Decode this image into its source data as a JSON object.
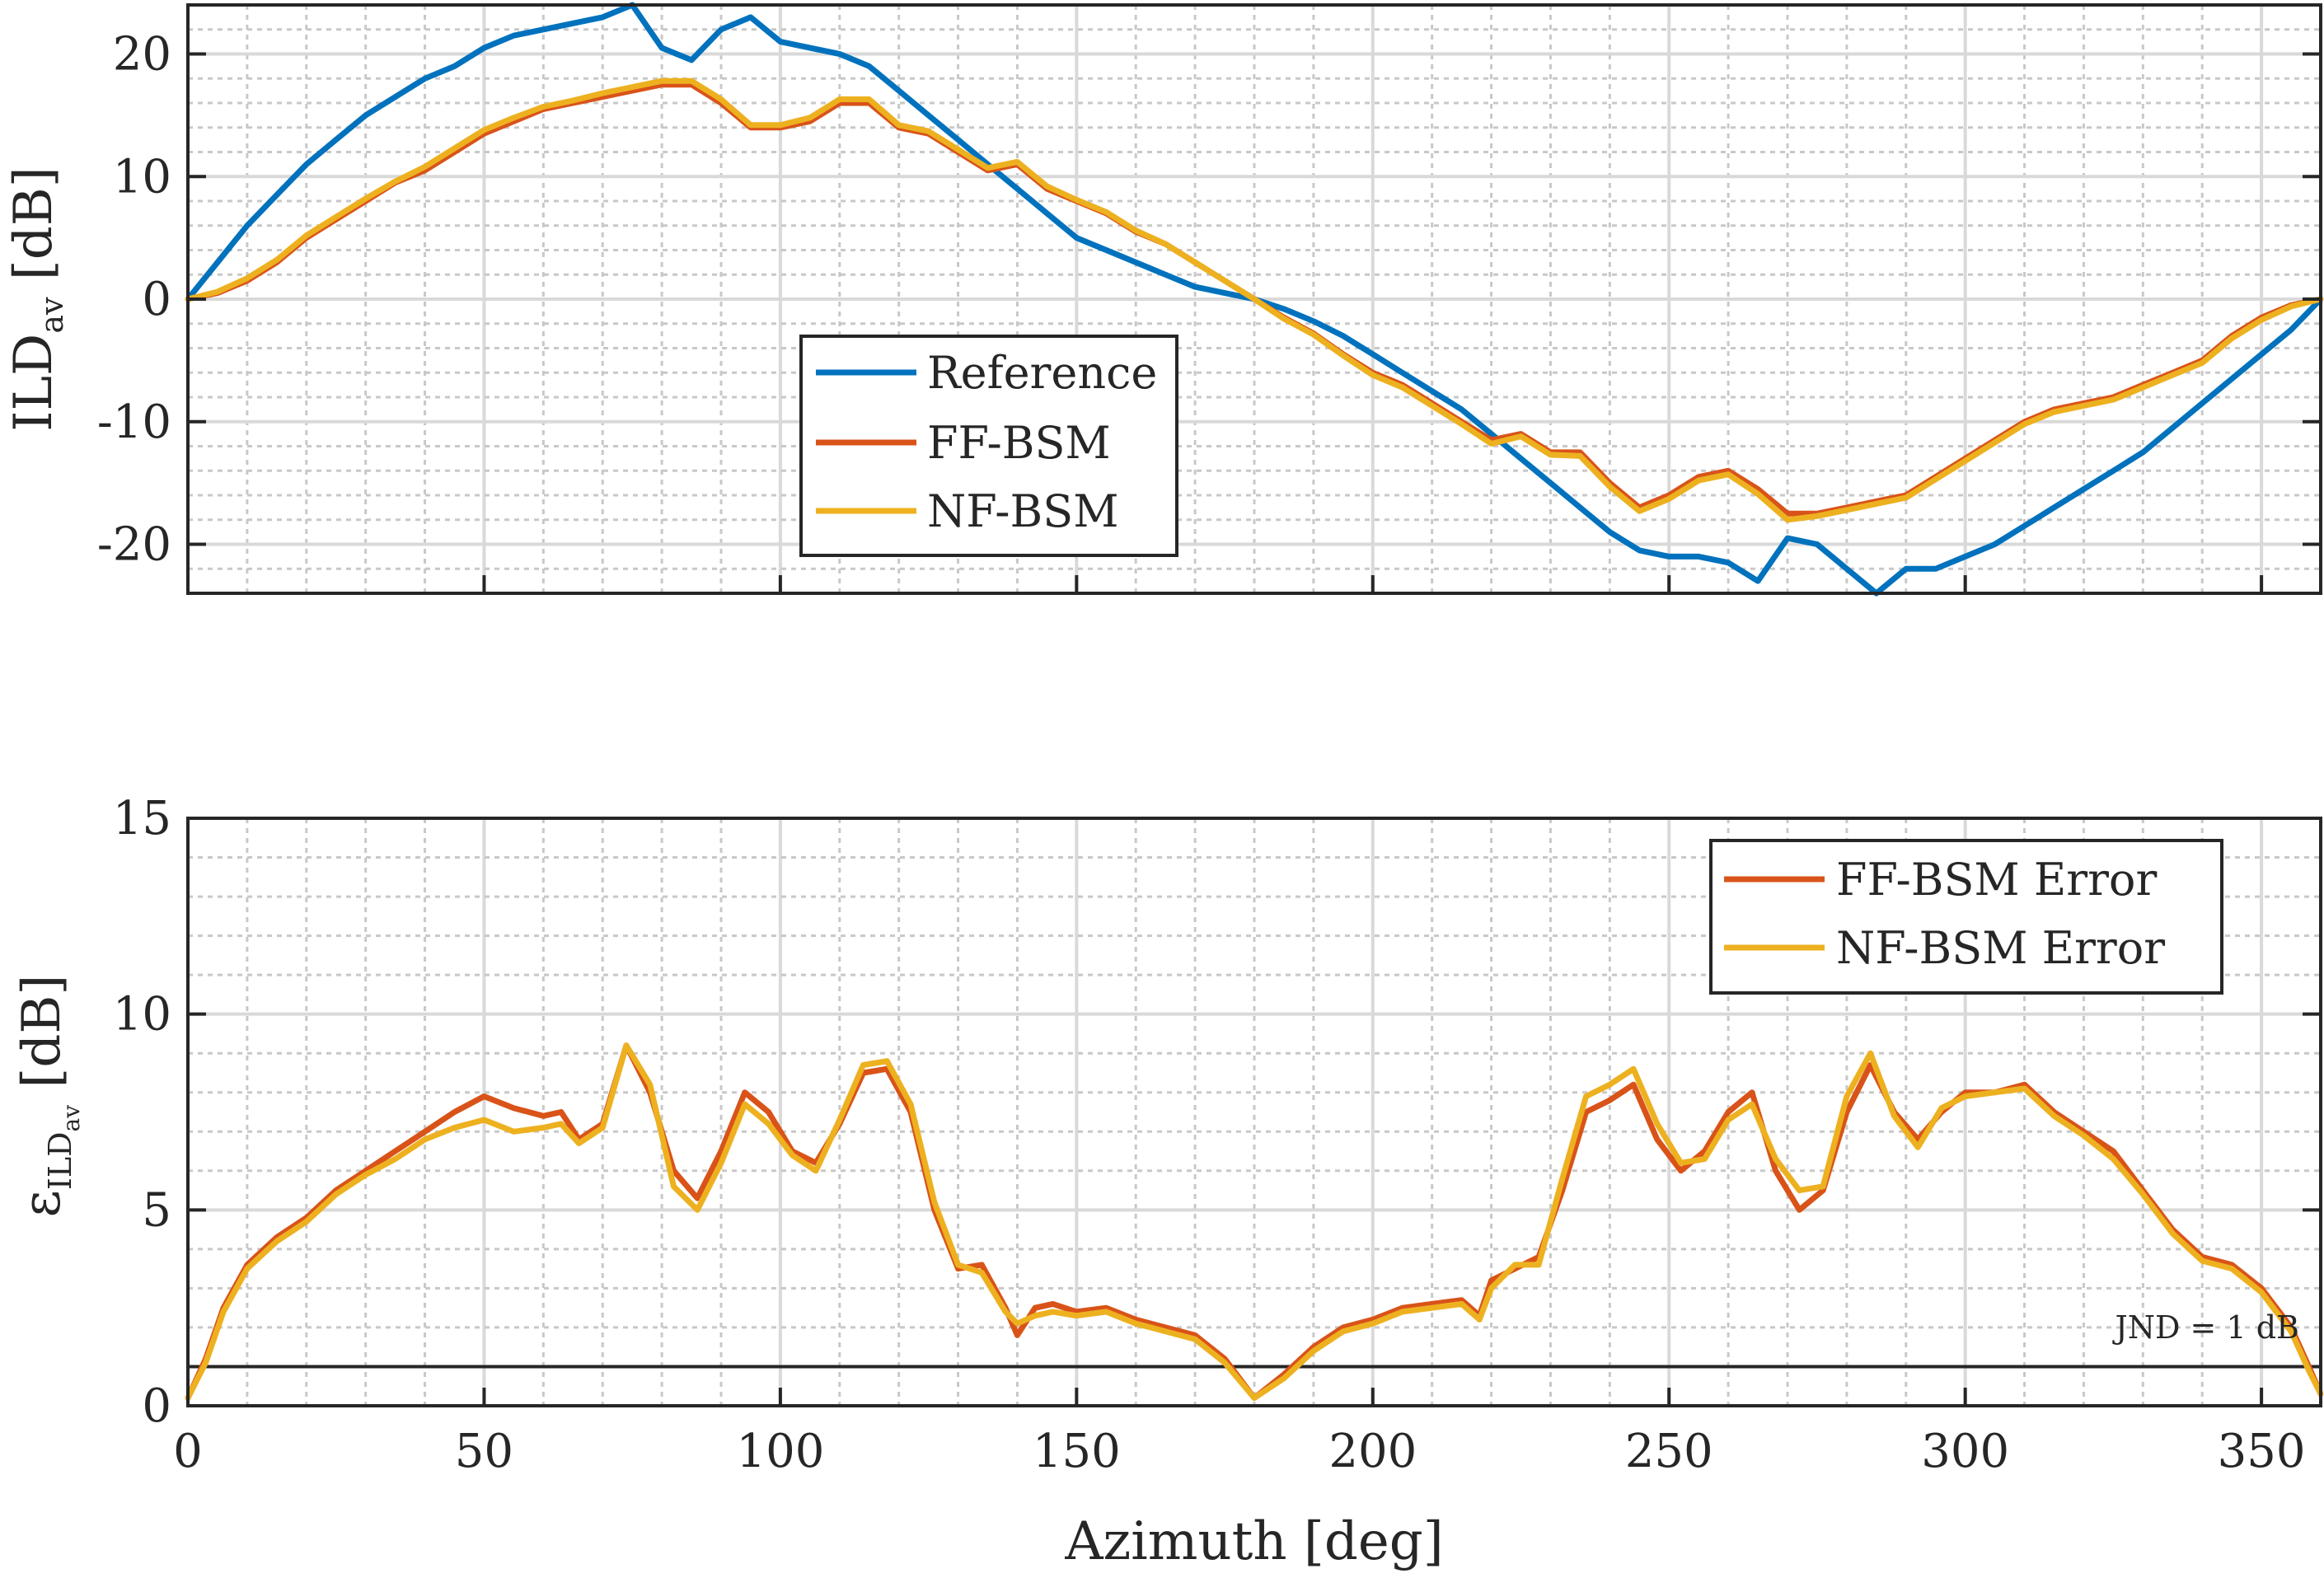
{
  "chart_data": [
    {
      "type": "line",
      "panel": "top",
      "ylabel_main": "ILD",
      "ylabel_sub": "av",
      "ylabel_unit": "[dB]",
      "xlim": [
        0,
        360
      ],
      "ylim": [
        -24,
        24
      ],
      "yticks": [
        -20,
        -10,
        0,
        10,
        20
      ],
      "ytick_labels": [
        "-20",
        "-10",
        "0",
        "10",
        "20"
      ],
      "grid": true,
      "minor_grid": true,
      "legend_position": "center",
      "series": [
        {
          "name": "Reference",
          "color": "#0072BD",
          "x": [
            0,
            5,
            10,
            15,
            20,
            25,
            30,
            35,
            40,
            45,
            50,
            55,
            60,
            65,
            70,
            75,
            80,
            85,
            90,
            95,
            100,
            105,
            110,
            115,
            120,
            125,
            130,
            135,
            140,
            145,
            150,
            155,
            160,
            165,
            170,
            175,
            180,
            185,
            190,
            195,
            200,
            205,
            210,
            215,
            220,
            225,
            230,
            235,
            240,
            245,
            250,
            255,
            260,
            265,
            270,
            275,
            280,
            285,
            290,
            295,
            300,
            305,
            310,
            315,
            320,
            325,
            330,
            335,
            340,
            345,
            350,
            355,
            360
          ],
          "y": [
            0,
            3,
            6,
            8.5,
            11,
            13,
            15,
            16.5,
            18,
            19,
            20.5,
            21.5,
            22,
            22.5,
            23,
            24,
            20.5,
            19.5,
            22,
            23,
            21,
            20.5,
            20,
            19,
            17,
            15,
            13,
            11,
            9,
            7,
            5,
            4,
            3,
            2,
            1,
            0.5,
            0,
            -0.8,
            -1.8,
            -3,
            -4.5,
            -6,
            -7.5,
            -9,
            -11,
            -13,
            -15,
            -17,
            -19,
            -20.5,
            -21,
            -21,
            -21.5,
            -23,
            -19.5,
            -20,
            -22,
            -24,
            -22,
            -22,
            -21,
            -20,
            -18.5,
            -17,
            -15.5,
            -14,
            -12.5,
            -10.5,
            -8.5,
            -6.5,
            -4.5,
            -2.5,
            0
          ]
        },
        {
          "name": "FF-BSM",
          "color": "#D95319",
          "x": [
            0,
            5,
            10,
            15,
            20,
            25,
            30,
            35,
            40,
            45,
            50,
            55,
            60,
            65,
            70,
            75,
            80,
            85,
            90,
            95,
            100,
            105,
            110,
            115,
            120,
            125,
            130,
            135,
            140,
            145,
            150,
            155,
            160,
            165,
            170,
            175,
            180,
            185,
            190,
            195,
            200,
            205,
            210,
            215,
            220,
            225,
            230,
            235,
            240,
            245,
            250,
            255,
            260,
            265,
            270,
            275,
            280,
            285,
            290,
            295,
            300,
            305,
            310,
            315,
            320,
            325,
            330,
            335,
            340,
            345,
            350,
            355,
            360
          ],
          "y": [
            0,
            0.5,
            1.5,
            3,
            5,
            6.5,
            8,
            9.5,
            10.5,
            12,
            13.5,
            14.5,
            15.5,
            16,
            16.5,
            17,
            17.5,
            17.5,
            16,
            14,
            14,
            14.5,
            16,
            16,
            14,
            13.5,
            12,
            10.5,
            11,
            9,
            8,
            7,
            5.5,
            4.5,
            3,
            1.5,
            0,
            -1.5,
            -2.8,
            -4.5,
            -6,
            -7,
            -8.5,
            -10,
            -11.5,
            -11,
            -12.5,
            -12.5,
            -15,
            -17,
            -16,
            -14.5,
            -14,
            -15.5,
            -17.5,
            -17.5,
            -17,
            -16.5,
            -16,
            -14.5,
            -13,
            -11.5,
            -10,
            -9,
            -8.5,
            -8,
            -7,
            -6,
            -5,
            -3,
            -1.5,
            -0.5,
            0
          ]
        },
        {
          "name": "NF-BSM",
          "color": "#EDB120",
          "x": [
            0,
            5,
            10,
            15,
            20,
            25,
            30,
            35,
            40,
            45,
            50,
            55,
            60,
            65,
            70,
            75,
            80,
            85,
            90,
            95,
            100,
            105,
            110,
            115,
            120,
            125,
            130,
            135,
            140,
            145,
            150,
            155,
            160,
            165,
            170,
            175,
            180,
            185,
            190,
            195,
            200,
            205,
            210,
            215,
            220,
            225,
            230,
            235,
            240,
            245,
            250,
            255,
            260,
            265,
            270,
            275,
            280,
            285,
            290,
            295,
            300,
            305,
            310,
            315,
            320,
            325,
            330,
            335,
            340,
            345,
            350,
            355,
            360
          ],
          "y": [
            0,
            0.6,
            1.7,
            3.2,
            5.2,
            6.7,
            8.2,
            9.6,
            10.8,
            12.3,
            13.8,
            14.8,
            15.7,
            16.2,
            16.8,
            17.3,
            17.8,
            17.8,
            16.3,
            14.2,
            14.2,
            14.8,
            16.3,
            16.3,
            14.2,
            13.7,
            12.2,
            10.7,
            11.2,
            9.2,
            8.1,
            7.1,
            5.6,
            4.5,
            3,
            1.5,
            0,
            -1.6,
            -2.9,
            -4.6,
            -6.2,
            -7.2,
            -8.7,
            -10.2,
            -11.8,
            -11.2,
            -12.7,
            -12.8,
            -15.3,
            -17.3,
            -16.3,
            -14.8,
            -14.3,
            -15.9,
            -18,
            -17.7,
            -17.2,
            -16.7,
            -16.2,
            -14.7,
            -13.2,
            -11.7,
            -10.2,
            -9.2,
            -8.7,
            -8.2,
            -7.2,
            -6.2,
            -5.2,
            -3.2,
            -1.7,
            -0.6,
            0
          ]
        }
      ]
    },
    {
      "type": "line",
      "panel": "bottom",
      "ylabel_main": "ε",
      "ylabel_sub": "ILD",
      "ylabel_subsub": "av",
      "ylabel_unit": "[dB]",
      "xlabel": "Azimuth [deg]",
      "xlim": [
        0,
        360
      ],
      "ylim": [
        0,
        15
      ],
      "yticks": [
        0,
        5,
        10,
        15
      ],
      "ytick_labels": [
        "0",
        "5",
        "10",
        "15"
      ],
      "xticks": [
        0,
        50,
        100,
        150,
        200,
        250,
        300,
        350
      ],
      "xtick_labels": [
        "0",
        "50",
        "100",
        "150",
        "200",
        "250",
        "300",
        "350"
      ],
      "grid": true,
      "minor_grid": true,
      "legend_position": "top-right",
      "jnd_value": 1,
      "annotation": "JND = 1 dB",
      "series": [
        {
          "name": "FF-BSM Error",
          "color": "#D95319",
          "x": [
            0,
            3,
            6,
            10,
            15,
            20,
            25,
            30,
            35,
            40,
            45,
            50,
            55,
            60,
            63,
            66,
            70,
            74,
            78,
            82,
            86,
            90,
            94,
            98,
            102,
            106,
            110,
            114,
            118,
            122,
            126,
            130,
            134,
            138,
            140,
            143,
            146,
            150,
            155,
            160,
            165,
            170,
            175,
            180,
            185,
            190,
            195,
            200,
            205,
            210,
            215,
            218,
            220,
            224,
            228,
            232,
            236,
            240,
            244,
            248,
            252,
            256,
            260,
            264,
            268,
            272,
            276,
            280,
            284,
            288,
            292,
            296,
            300,
            305,
            310,
            315,
            320,
            325,
            330,
            335,
            340,
            345,
            350,
            355,
            358,
            360
          ],
          "y": [
            0.2,
            1.2,
            2.5,
            3.6,
            4.3,
            4.8,
            5.5,
            6,
            6.5,
            7,
            7.5,
            7.9,
            7.6,
            7.4,
            7.5,
            6.8,
            7.2,
            9.2,
            8,
            6,
            5.3,
            6.5,
            8,
            7.5,
            6.5,
            6.2,
            7.2,
            8.5,
            8.6,
            7.5,
            5,
            3.5,
            3.6,
            2.5,
            1.8,
            2.5,
            2.6,
            2.4,
            2.5,
            2.2,
            2,
            1.8,
            1.2,
            0.2,
            0.8,
            1.5,
            2,
            2.2,
            2.5,
            2.6,
            2.7,
            2.3,
            3.2,
            3.5,
            3.8,
            5.5,
            7.5,
            7.8,
            8.2,
            6.8,
            6,
            6.5,
            7.5,
            8,
            6,
            5,
            5.5,
            7.5,
            8.7,
            7.5,
            6.8,
            7.5,
            8,
            8,
            8.2,
            7.5,
            7,
            6.5,
            5.5,
            4.5,
            3.8,
            3.6,
            3,
            2,
            1,
            0.3
          ]
        },
        {
          "name": "NF-BSM Error",
          "color": "#EDB120",
          "x": [
            0,
            3,
            6,
            10,
            15,
            20,
            25,
            30,
            35,
            40,
            45,
            50,
            55,
            60,
            63,
            66,
            70,
            74,
            78,
            82,
            86,
            90,
            94,
            98,
            102,
            106,
            110,
            114,
            118,
            122,
            126,
            130,
            134,
            138,
            140,
            143,
            146,
            150,
            155,
            160,
            165,
            170,
            175,
            180,
            185,
            190,
            195,
            200,
            205,
            210,
            215,
            218,
            220,
            224,
            228,
            232,
            236,
            240,
            244,
            248,
            252,
            256,
            260,
            264,
            268,
            272,
            276,
            280,
            284,
            288,
            292,
            296,
            300,
            305,
            310,
            315,
            320,
            325,
            330,
            335,
            340,
            345,
            350,
            355,
            358,
            360
          ],
          "y": [
            0.2,
            1.1,
            2.4,
            3.5,
            4.2,
            4.7,
            5.4,
            5.9,
            6.3,
            6.8,
            7.1,
            7.3,
            7,
            7.1,
            7.2,
            6.7,
            7.1,
            9.2,
            8.2,
            5.6,
            5,
            6.2,
            7.7,
            7.2,
            6.4,
            6,
            7.3,
            8.7,
            8.8,
            7.7,
            5.2,
            3.6,
            3.4,
            2.4,
            2.1,
            2.3,
            2.4,
            2.3,
            2.4,
            2.1,
            1.9,
            1.7,
            1.1,
            0.2,
            0.7,
            1.4,
            1.9,
            2.1,
            2.4,
            2.5,
            2.6,
            2.2,
            3,
            3.6,
            3.6,
            5.8,
            7.9,
            8.2,
            8.6,
            7.2,
            6.2,
            6.3,
            7.3,
            7.7,
            6.3,
            5.5,
            5.6,
            7.9,
            9,
            7.4,
            6.6,
            7.6,
            7.9,
            8,
            8.1,
            7.4,
            6.9,
            6.3,
            5.4,
            4.4,
            3.7,
            3.5,
            2.9,
            1.9,
            0.9,
            0.3
          ]
        }
      ]
    }
  ]
}
